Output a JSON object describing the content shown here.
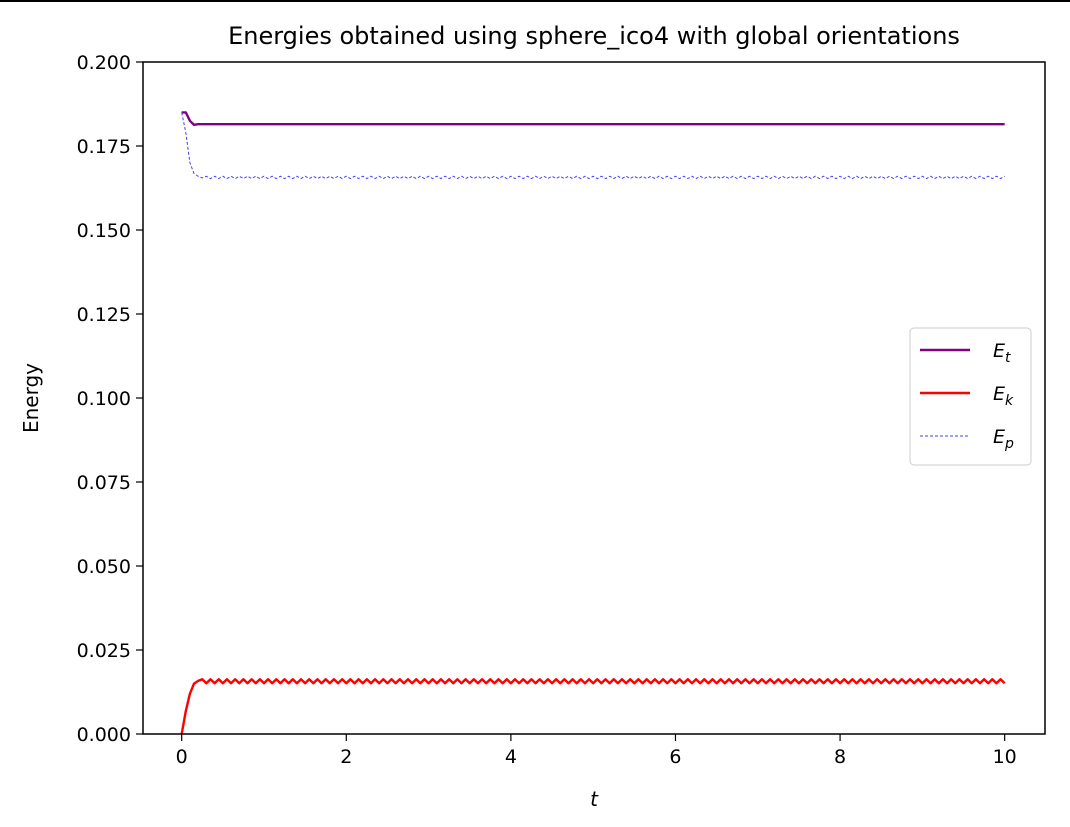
{
  "chart_data": {
    "type": "line",
    "title": "Energies obtained using sphere_ico4 with global orientations",
    "xlabel": "t",
    "ylabel": "Energy",
    "xlim": [
      -0.47,
      10.49
    ],
    "ylim": [
      0,
      0.2
    ],
    "xticks": [
      0,
      2,
      4,
      6,
      8,
      10
    ],
    "xtick_labels": [
      "0",
      "2",
      "4",
      "6",
      "8",
      "10"
    ],
    "yticks": [
      0,
      0.025,
      0.05,
      0.075,
      0.1,
      0.125,
      0.15,
      0.175,
      0.2
    ],
    "ytick_labels": [
      "0.000",
      "0.025",
      "0.050",
      "0.075",
      "0.100",
      "0.125",
      "0.150",
      "0.175",
      "0.200"
    ],
    "grid": false,
    "legend_position": "center-right",
    "x": [
      0,
      0.05,
      0.1,
      0.15,
      0.2,
      0.25,
      0.3,
      0.35,
      0.4,
      0.45,
      0.5,
      0.55,
      0.6,
      0.65,
      0.7,
      0.75,
      0.8,
      0.85,
      0.9,
      0.95,
      1,
      1.05,
      1.1,
      1.15,
      1.2,
      1.25,
      1.3,
      1.35,
      1.4,
      1.45,
      1.5,
      1.55,
      1.6,
      1.65,
      1.7,
      1.75,
      1.8,
      1.85,
      1.9,
      1.95,
      2,
      2.05,
      2.1,
      2.15,
      2.2,
      2.25,
      2.3,
      2.35,
      2.4,
      2.45,
      2.5,
      2.55,
      2.6,
      2.65,
      2.7,
      2.75,
      2.8,
      2.85,
      2.9,
      2.95,
      3,
      3.05,
      3.1,
      3.15,
      3.2,
      3.25,
      3.3,
      3.35,
      3.4,
      3.45,
      3.5,
      3.55,
      3.6,
      3.65,
      3.7,
      3.75,
      3.8,
      3.85,
      3.9,
      3.95,
      4,
      4.05,
      4.1,
      4.15,
      4.2,
      4.25,
      4.3,
      4.35,
      4.4,
      4.45,
      4.5,
      4.55,
      4.6,
      4.65,
      4.7,
      4.75,
      4.8,
      4.85,
      4.9,
      4.95,
      5,
      5.05,
      5.1,
      5.15,
      5.2,
      5.25,
      5.3,
      5.35,
      5.4,
      5.45,
      5.5,
      5.55,
      5.6,
      5.65,
      5.7,
      5.75,
      5.8,
      5.85,
      5.9,
      5.95,
      6,
      6.05,
      6.1,
      6.15,
      6.2,
      6.25,
      6.3,
      6.35,
      6.4,
      6.45,
      6.5,
      6.55,
      6.6,
      6.65,
      6.7,
      6.75,
      6.8,
      6.85,
      6.9,
      6.95,
      7,
      7.05,
      7.1,
      7.15,
      7.2,
      7.25,
      7.3,
      7.35,
      7.4,
      7.45,
      7.5,
      7.55,
      7.6,
      7.65,
      7.7,
      7.75,
      7.8,
      7.85,
      7.9,
      7.95,
      8,
      8.05,
      8.1,
      8.15,
      8.2,
      8.25,
      8.3,
      8.35,
      8.4,
      8.45,
      8.5,
      8.55,
      8.6,
      8.65,
      8.7,
      8.75,
      8.8,
      8.85,
      8.9,
      8.95,
      9,
      9.05,
      9.1,
      9.15,
      9.2,
      9.25,
      9.3,
      9.35,
      9.4,
      9.45,
      9.5,
      9.55,
      9.6,
      9.65,
      9.7,
      9.75,
      9.8,
      9.85,
      9.9,
      9.95,
      10
    ],
    "series": [
      {
        "name": "E_t",
        "legend_main": "E",
        "legend_sub": "t",
        "color": "#800080",
        "style": "solid",
        "x": [
          0,
          0.05,
          0.1,
          0.15,
          0.2,
          0.3,
          10
        ],
        "values": [
          0.185,
          0.185,
          0.1825,
          0.1813,
          0.1815,
          0.1815,
          0.1815
        ]
      },
      {
        "name": "E_k",
        "legend_main": "E",
        "legend_sub": "k",
        "color": "#ff0000",
        "style": "solid",
        "values": [
          0,
          0.0068,
          0.012,
          0.015,
          0.0158,
          0.0163,
          0.0151,
          0.0163,
          0.0151,
          0.0163,
          0.0151,
          0.0163,
          0.0151,
          0.0163,
          0.0151,
          0.0163,
          0.0151,
          0.0163,
          0.0151,
          0.0163,
          0.0151,
          0.0163,
          0.0151,
          0.0163,
          0.0151,
          0.0163,
          0.0151,
          0.0163,
          0.0151,
          0.0163,
          0.0151,
          0.0163,
          0.0151,
          0.0163,
          0.0151,
          0.0163,
          0.0151,
          0.0163,
          0.0151,
          0.0163,
          0.0151,
          0.0163,
          0.0151,
          0.0163,
          0.0151,
          0.0163,
          0.0151,
          0.0163,
          0.0151,
          0.0163,
          0.0151,
          0.0163,
          0.0151,
          0.0163,
          0.0151,
          0.0163,
          0.0151,
          0.0163,
          0.0151,
          0.0163,
          0.0151,
          0.0163,
          0.0151,
          0.0163,
          0.0151,
          0.0163,
          0.0151,
          0.0163,
          0.0151,
          0.0163,
          0.0151,
          0.0163,
          0.0151,
          0.0163,
          0.0151,
          0.0163,
          0.0151,
          0.0163,
          0.0151,
          0.0163,
          0.0151,
          0.0163,
          0.0151,
          0.0163,
          0.0151,
          0.0163,
          0.0151,
          0.0163,
          0.0151,
          0.0163,
          0.0151,
          0.0163,
          0.0151,
          0.0163,
          0.0151,
          0.0163,
          0.0151,
          0.0163,
          0.0151,
          0.0163,
          0.0151,
          0.0163,
          0.0151,
          0.0163,
          0.0151,
          0.0163,
          0.0151,
          0.0163,
          0.0151,
          0.0163,
          0.0151,
          0.0163,
          0.0151,
          0.0163,
          0.0151,
          0.0163,
          0.0151,
          0.0163,
          0.0151,
          0.0163,
          0.0151,
          0.0163,
          0.0151,
          0.0163,
          0.0151,
          0.0163,
          0.0151,
          0.0163,
          0.0151,
          0.0163,
          0.0151,
          0.0163,
          0.0151,
          0.0163,
          0.0151,
          0.0163,
          0.0151,
          0.0163,
          0.0151,
          0.0163,
          0.0151,
          0.0163,
          0.0151,
          0.0163,
          0.0151,
          0.0163,
          0.0151,
          0.0163,
          0.0151,
          0.0163,
          0.0151,
          0.0163,
          0.0151,
          0.0163,
          0.0151,
          0.0163,
          0.0151,
          0.0163,
          0.0151,
          0.0163,
          0.0151,
          0.0163,
          0.0151,
          0.0163,
          0.0151,
          0.0163,
          0.0151,
          0.0163,
          0.0151,
          0.0163,
          0.0151,
          0.0163,
          0.0151,
          0.0163,
          0.0151,
          0.0163,
          0.0151,
          0.0163,
          0.0151,
          0.0163,
          0.0151,
          0.0163,
          0.0151,
          0.0163,
          0.0151,
          0.0163,
          0.0151,
          0.0163,
          0.0151,
          0.0163,
          0.0151,
          0.0163,
          0.0151,
          0.0163,
          0.0151,
          0.0163,
          0.0151,
          0.0163,
          0.0151,
          0.0163,
          0.0151
        ]
      },
      {
        "name": "E_p",
        "legend_main": "E",
        "legend_sub": "p",
        "color": "#4040ff",
        "style": "dashed",
        "values": [
          0.185,
          0.179,
          0.17,
          0.1668,
          0.166,
          0.1655,
          0.166,
          0.1653,
          0.166,
          0.1653,
          0.166,
          0.1653,
          0.166,
          0.1653,
          0.166,
          0.1653,
          0.166,
          0.1653,
          0.166,
          0.1653,
          0.166,
          0.1653,
          0.166,
          0.1653,
          0.166,
          0.1653,
          0.166,
          0.1653,
          0.166,
          0.1653,
          0.166,
          0.1653,
          0.166,
          0.1653,
          0.166,
          0.1653,
          0.166,
          0.1653,
          0.166,
          0.1653,
          0.166,
          0.1653,
          0.166,
          0.1653,
          0.166,
          0.1653,
          0.166,
          0.1653,
          0.166,
          0.1653,
          0.166,
          0.1653,
          0.166,
          0.1653,
          0.166,
          0.1653,
          0.166,
          0.1653,
          0.166,
          0.1653,
          0.166,
          0.1653,
          0.166,
          0.1653,
          0.166,
          0.1653,
          0.166,
          0.1653,
          0.166,
          0.1653,
          0.166,
          0.1653,
          0.166,
          0.1653,
          0.166,
          0.1653,
          0.166,
          0.1653,
          0.166,
          0.1653,
          0.166,
          0.1653,
          0.166,
          0.1653,
          0.166,
          0.1653,
          0.166,
          0.1653,
          0.166,
          0.1653,
          0.166,
          0.1653,
          0.166,
          0.1653,
          0.166,
          0.1653,
          0.166,
          0.1653,
          0.166,
          0.1653,
          0.166,
          0.1653,
          0.166,
          0.1653,
          0.166,
          0.1653,
          0.166,
          0.1653,
          0.166,
          0.1653,
          0.166,
          0.1653,
          0.166,
          0.1653,
          0.166,
          0.1653,
          0.166,
          0.1653,
          0.166,
          0.1653,
          0.166,
          0.1653,
          0.166,
          0.1653,
          0.166,
          0.1653,
          0.166,
          0.1653,
          0.166,
          0.1653,
          0.166,
          0.1653,
          0.166,
          0.1653,
          0.166,
          0.1653,
          0.166,
          0.1653,
          0.166,
          0.1653,
          0.166,
          0.1653,
          0.166,
          0.1653,
          0.166,
          0.1653,
          0.166,
          0.1653,
          0.166,
          0.1653,
          0.166,
          0.1653,
          0.166,
          0.1653,
          0.166,
          0.1653,
          0.166,
          0.1653,
          0.166,
          0.1653,
          0.166,
          0.1653,
          0.166,
          0.1653,
          0.166,
          0.1653,
          0.166,
          0.1653,
          0.166,
          0.1653,
          0.166,
          0.1653,
          0.166,
          0.1653,
          0.166,
          0.1653,
          0.166,
          0.1653,
          0.166,
          0.1653,
          0.166,
          0.1653,
          0.166,
          0.1653,
          0.166,
          0.1653,
          0.166,
          0.1653,
          0.166,
          0.1653,
          0.166,
          0.1653,
          0.166,
          0.1653,
          0.166,
          0.1653,
          0.166,
          0.1653,
          0.166,
          0.1653,
          0.166
        ]
      }
    ]
  }
}
